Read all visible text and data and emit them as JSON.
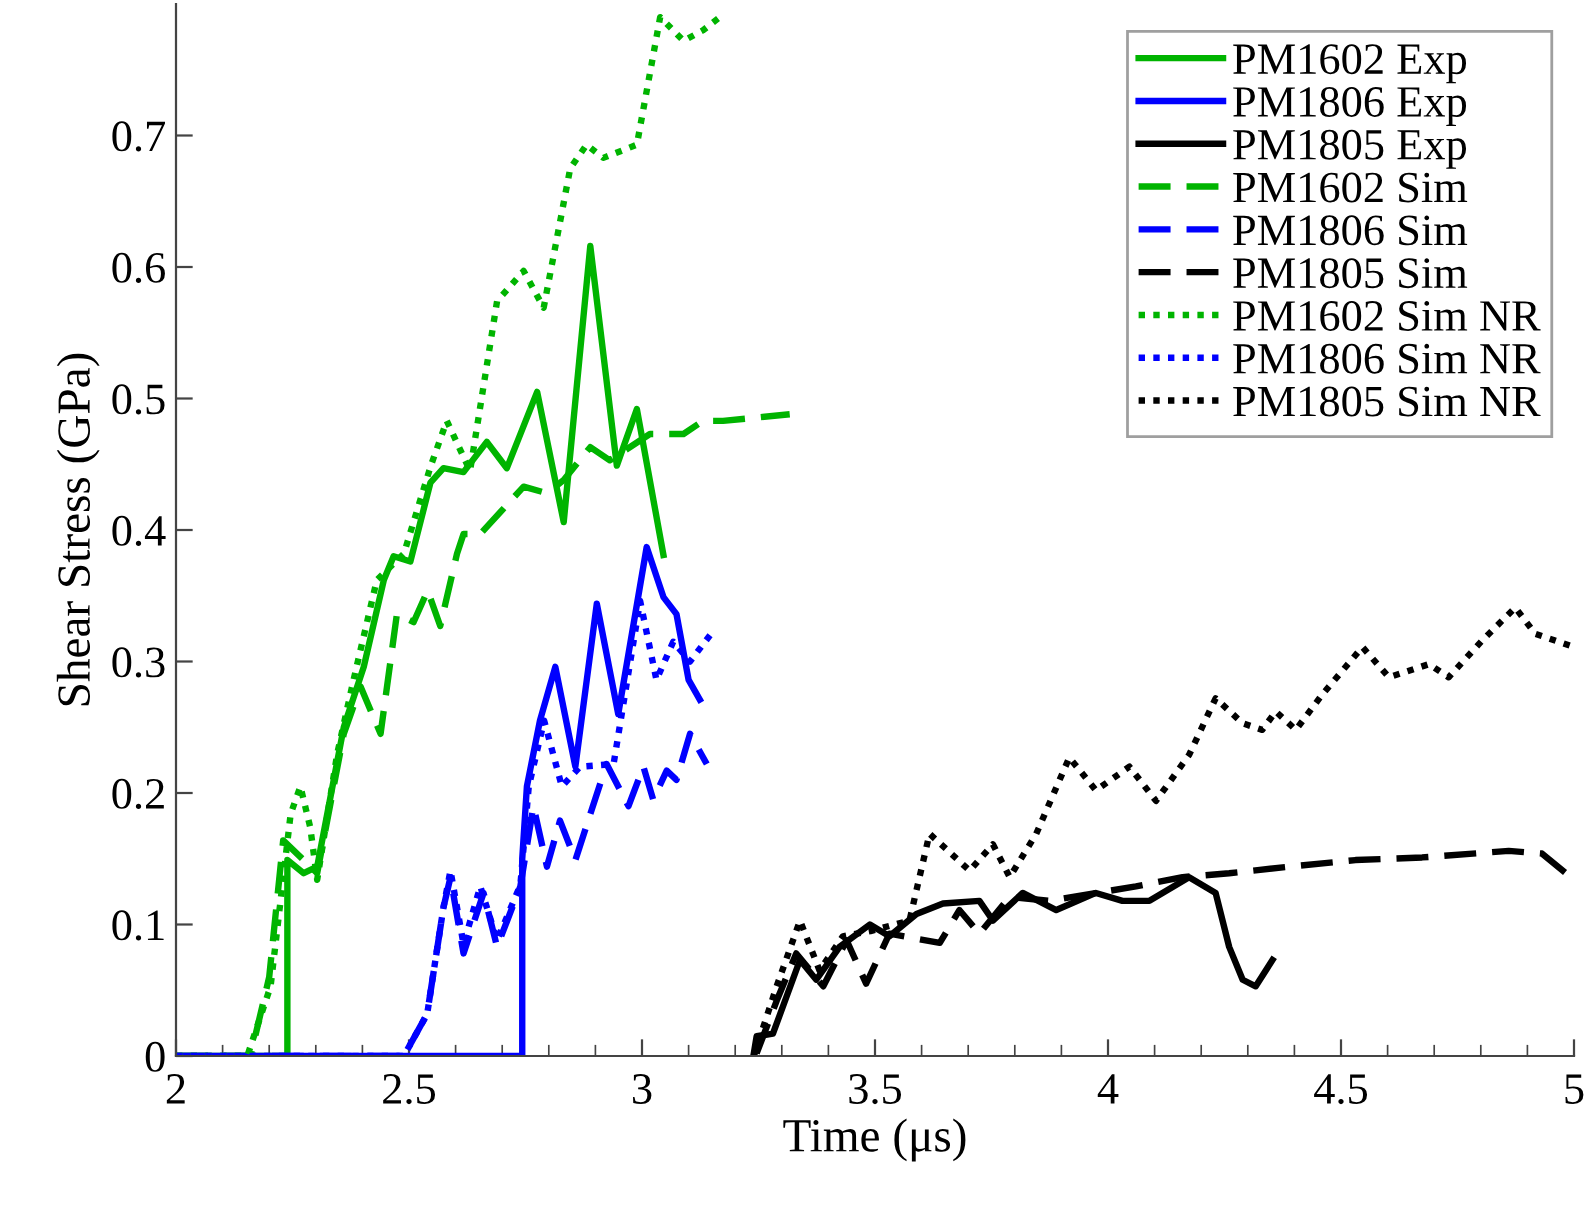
{
  "chart_data": {
    "type": "line",
    "xlabel": "Time (μs)",
    "ylabel": "Shear Stress (GPa)",
    "xlim": [
      2,
      5
    ],
    "ylim": [
      0,
      0.8
    ],
    "xticks": [
      2,
      {
        "value": 2.1,
        "label": null
      },
      {
        "value": 2.2,
        "label": null
      },
      {
        "value": 2.3,
        "label": null
      },
      {
        "value": 2.4,
        "label": null
      },
      2.5,
      {
        "value": 2.6,
        "label": null
      },
      {
        "value": 2.7,
        "label": null
      },
      {
        "value": 2.8,
        "label": null
      },
      {
        "value": 2.9,
        "label": null
      },
      3,
      {
        "value": 3.1,
        "label": null
      },
      {
        "value": 3.2,
        "label": null
      },
      {
        "value": 3.3,
        "label": null
      },
      {
        "value": 3.4,
        "label": null
      },
      3.5,
      {
        "value": 3.6,
        "label": null
      },
      {
        "value": 3.7,
        "label": null
      },
      {
        "value": 3.8,
        "label": null
      },
      {
        "value": 3.9,
        "label": null
      },
      4,
      {
        "value": 4.1,
        "label": null
      },
      {
        "value": 4.2,
        "label": null
      },
      {
        "value": 4.3,
        "label": null
      },
      {
        "value": 4.4,
        "label": null
      },
      4.5,
      {
        "value": 4.6,
        "label": null
      },
      {
        "value": 4.7,
        "label": null
      },
      {
        "value": 4.8,
        "label": null
      },
      {
        "value": 4.9,
        "label": null
      },
      5
    ],
    "yticks": [
      0,
      0.1,
      0.2,
      0.3,
      0.4,
      0.5,
      0.6,
      0.7
    ],
    "grid": false,
    "legend": "top right",
    "marker": "none",
    "series": [
      {
        "name": "PM1602 Exp",
        "color": "#00b400",
        "line_style": "solid",
        "x": [
          2,
          2.239,
          2.239,
          2.274,
          2.303,
          2.36,
          2.403,
          2.446,
          2.467,
          2.503,
          2.546,
          2.574,
          2.617,
          2.667,
          2.71,
          2.775,
          2.832,
          2.889,
          2.946,
          2.989,
          3.046
        ],
        "values": [
          0,
          0,
          0.149,
          0.139,
          0.144,
          0.25,
          0.296,
          0.362,
          0.38,
          0.376,
          0.436,
          0.447,
          0.444,
          0.467,
          0.447,
          0.505,
          0.406,
          0.616,
          0.449,
          0.492,
          0.381
        ]
      },
      {
        "name": "PM1806 Exp",
        "color": "#0000ff",
        "line_style": "solid",
        "x": [
          2,
          2.743,
          2.743,
          2.753,
          2.781,
          2.814,
          2.857,
          2.903,
          2.949,
          3.01,
          3.046,
          3.074,
          3.1,
          3.124
        ],
        "values": [
          0,
          0,
          0.15,
          0.205,
          0.255,
          0.296,
          0.22,
          0.344,
          0.26,
          0.387,
          0.349,
          0.336,
          0.286,
          0.271
        ]
      },
      {
        "name": "PM1805 Exp",
        "color": "#000000",
        "line_style": "solid",
        "x": [
          3.239,
          3.246,
          3.281,
          3.339,
          3.374,
          3.424,
          3.489,
          3.531,
          3.589,
          3.646,
          3.724,
          3.753,
          3.817,
          3.889,
          3.974,
          4.031,
          4.089,
          4.174,
          4.231,
          4.26,
          4.289,
          4.317,
          4.353
        ],
        "values": [
          0,
          0.015,
          0.017,
          0.073,
          0.058,
          0.083,
          0.1,
          0.091,
          0.108,
          0.116,
          0.118,
          0.103,
          0.124,
          0.111,
          0.124,
          0.118,
          0.118,
          0.136,
          0.124,
          0.083,
          0.058,
          0.053,
          0.073
        ]
      },
      {
        "name": "PM1602 Sim",
        "color": "#00b400",
        "line_style": "dashed",
        "x": [
          2,
          2.16,
          2.2,
          2.23,
          2.303,
          2.36,
          2.396,
          2.439,
          2.474,
          2.51,
          2.54,
          2.567,
          2.603,
          2.617,
          2.653,
          2.746,
          2.796,
          2.832,
          2.889,
          2.931,
          3.017,
          3.089,
          3.131,
          3.174,
          3.317
        ],
        "values": [
          0,
          0,
          0.06,
          0.164,
          0.139,
          0.245,
          0.281,
          0.245,
          0.336,
          0.33,
          0.354,
          0.327,
          0.382,
          0.397,
          0.397,
          0.433,
          0.428,
          0.438,
          0.463,
          0.453,
          0.473,
          0.473,
          0.483,
          0.483,
          0.488
        ]
      },
      {
        "name": "PM1806 Sim",
        "color": "#0000ff",
        "line_style": "dashed",
        "x": [
          2,
          2.489,
          2.539,
          2.574,
          2.589,
          2.617,
          2.66,
          2.689,
          2.739,
          2.767,
          2.796,
          2.824,
          2.857,
          2.924,
          2.971,
          3.003,
          3.024,
          3.053,
          3.074,
          3.103,
          3.139
        ],
        "values": [
          0,
          0,
          0.032,
          0.113,
          0.136,
          0.078,
          0.124,
          0.083,
          0.129,
          0.19,
          0.144,
          0.179,
          0.149,
          0.222,
          0.19,
          0.22,
          0.195,
          0.217,
          0.21,
          0.245,
          0.222
        ]
      },
      {
        "name": "PM1805 Sim",
        "color": "#000000",
        "line_style": "dashed",
        "x": [
          3.246,
          3.289,
          3.331,
          3.389,
          3.439,
          3.481,
          3.531,
          3.639,
          3.681,
          3.724,
          3.789,
          3.874,
          4.06,
          4.16,
          4.26,
          4.389,
          4.531,
          4.674,
          4.86,
          4.931,
          5.0
        ],
        "values": [
          0.002,
          0.042,
          0.078,
          0.053,
          0.088,
          0.055,
          0.093,
          0.086,
          0.111,
          0.093,
          0.121,
          0.118,
          0.129,
          0.136,
          0.139,
          0.144,
          0.149,
          0.151,
          0.156,
          0.154,
          0.134
        ]
      },
      {
        "name": "PM1602 Sim NR",
        "color": "#00b400",
        "line_style": "dotted",
        "x": [
          2,
          2.153,
          2.203,
          2.246,
          2.267,
          2.288,
          2.303,
          2.346,
          2.381,
          2.431,
          2.489,
          2.546,
          2.581,
          2.631,
          2.689,
          2.746,
          2.789,
          2.846,
          2.881,
          2.917,
          2.989,
          3.039,
          3.089,
          3.131,
          3.167
        ],
        "values": [
          0,
          0,
          0.053,
          0.184,
          0.205,
          0.174,
          0.134,
          0.23,
          0.286,
          0.362,
          0.382,
          0.448,
          0.483,
          0.445,
          0.574,
          0.597,
          0.569,
          0.675,
          0.693,
          0.683,
          0.693,
          0.79,
          0.772,
          0.78,
          0.79
        ]
      },
      {
        "name": "PM1806 Sim NR",
        "color": "#0000ff",
        "line_style": "dotted",
        "x": [
          2,
          2.489,
          2.539,
          2.574,
          2.589,
          2.617,
          2.653,
          2.689,
          2.739,
          2.757,
          2.79,
          2.828,
          2.867,
          2.939,
          2.996,
          3.031,
          3.067,
          3.103,
          3.146
        ],
        "values": [
          0,
          0,
          0.032,
          0.113,
          0.141,
          0.085,
          0.129,
          0.088,
          0.13,
          0.205,
          0.255,
          0.205,
          0.22,
          0.222,
          0.346,
          0.286,
          0.315,
          0.3,
          0.32
        ]
      },
      {
        "name": "PM1805 Sim NR",
        "color": "#000000",
        "line_style": "dotted",
        "x": [
          3.24,
          3.289,
          3.339,
          3.381,
          3.431,
          3.49,
          3.574,
          3.617,
          3.703,
          3.753,
          3.789,
          3.846,
          3.917,
          3.974,
          4.046,
          4.103,
          4.174,
          4.231,
          4.289,
          4.331,
          4.36,
          4.403,
          4.46,
          4.546,
          4.603,
          4.689,
          4.731,
          4.803,
          4.874,
          4.917,
          5.0
        ],
        "values": [
          0,
          0.053,
          0.103,
          0.065,
          0.091,
          0.095,
          0.103,
          0.169,
          0.141,
          0.161,
          0.136,
          0.169,
          0.227,
          0.202,
          0.22,
          0.194,
          0.229,
          0.272,
          0.253,
          0.248,
          0.262,
          0.248,
          0.275,
          0.311,
          0.288,
          0.298,
          0.288,
          0.316,
          0.341,
          0.321,
          0.311
        ]
      }
    ]
  }
}
